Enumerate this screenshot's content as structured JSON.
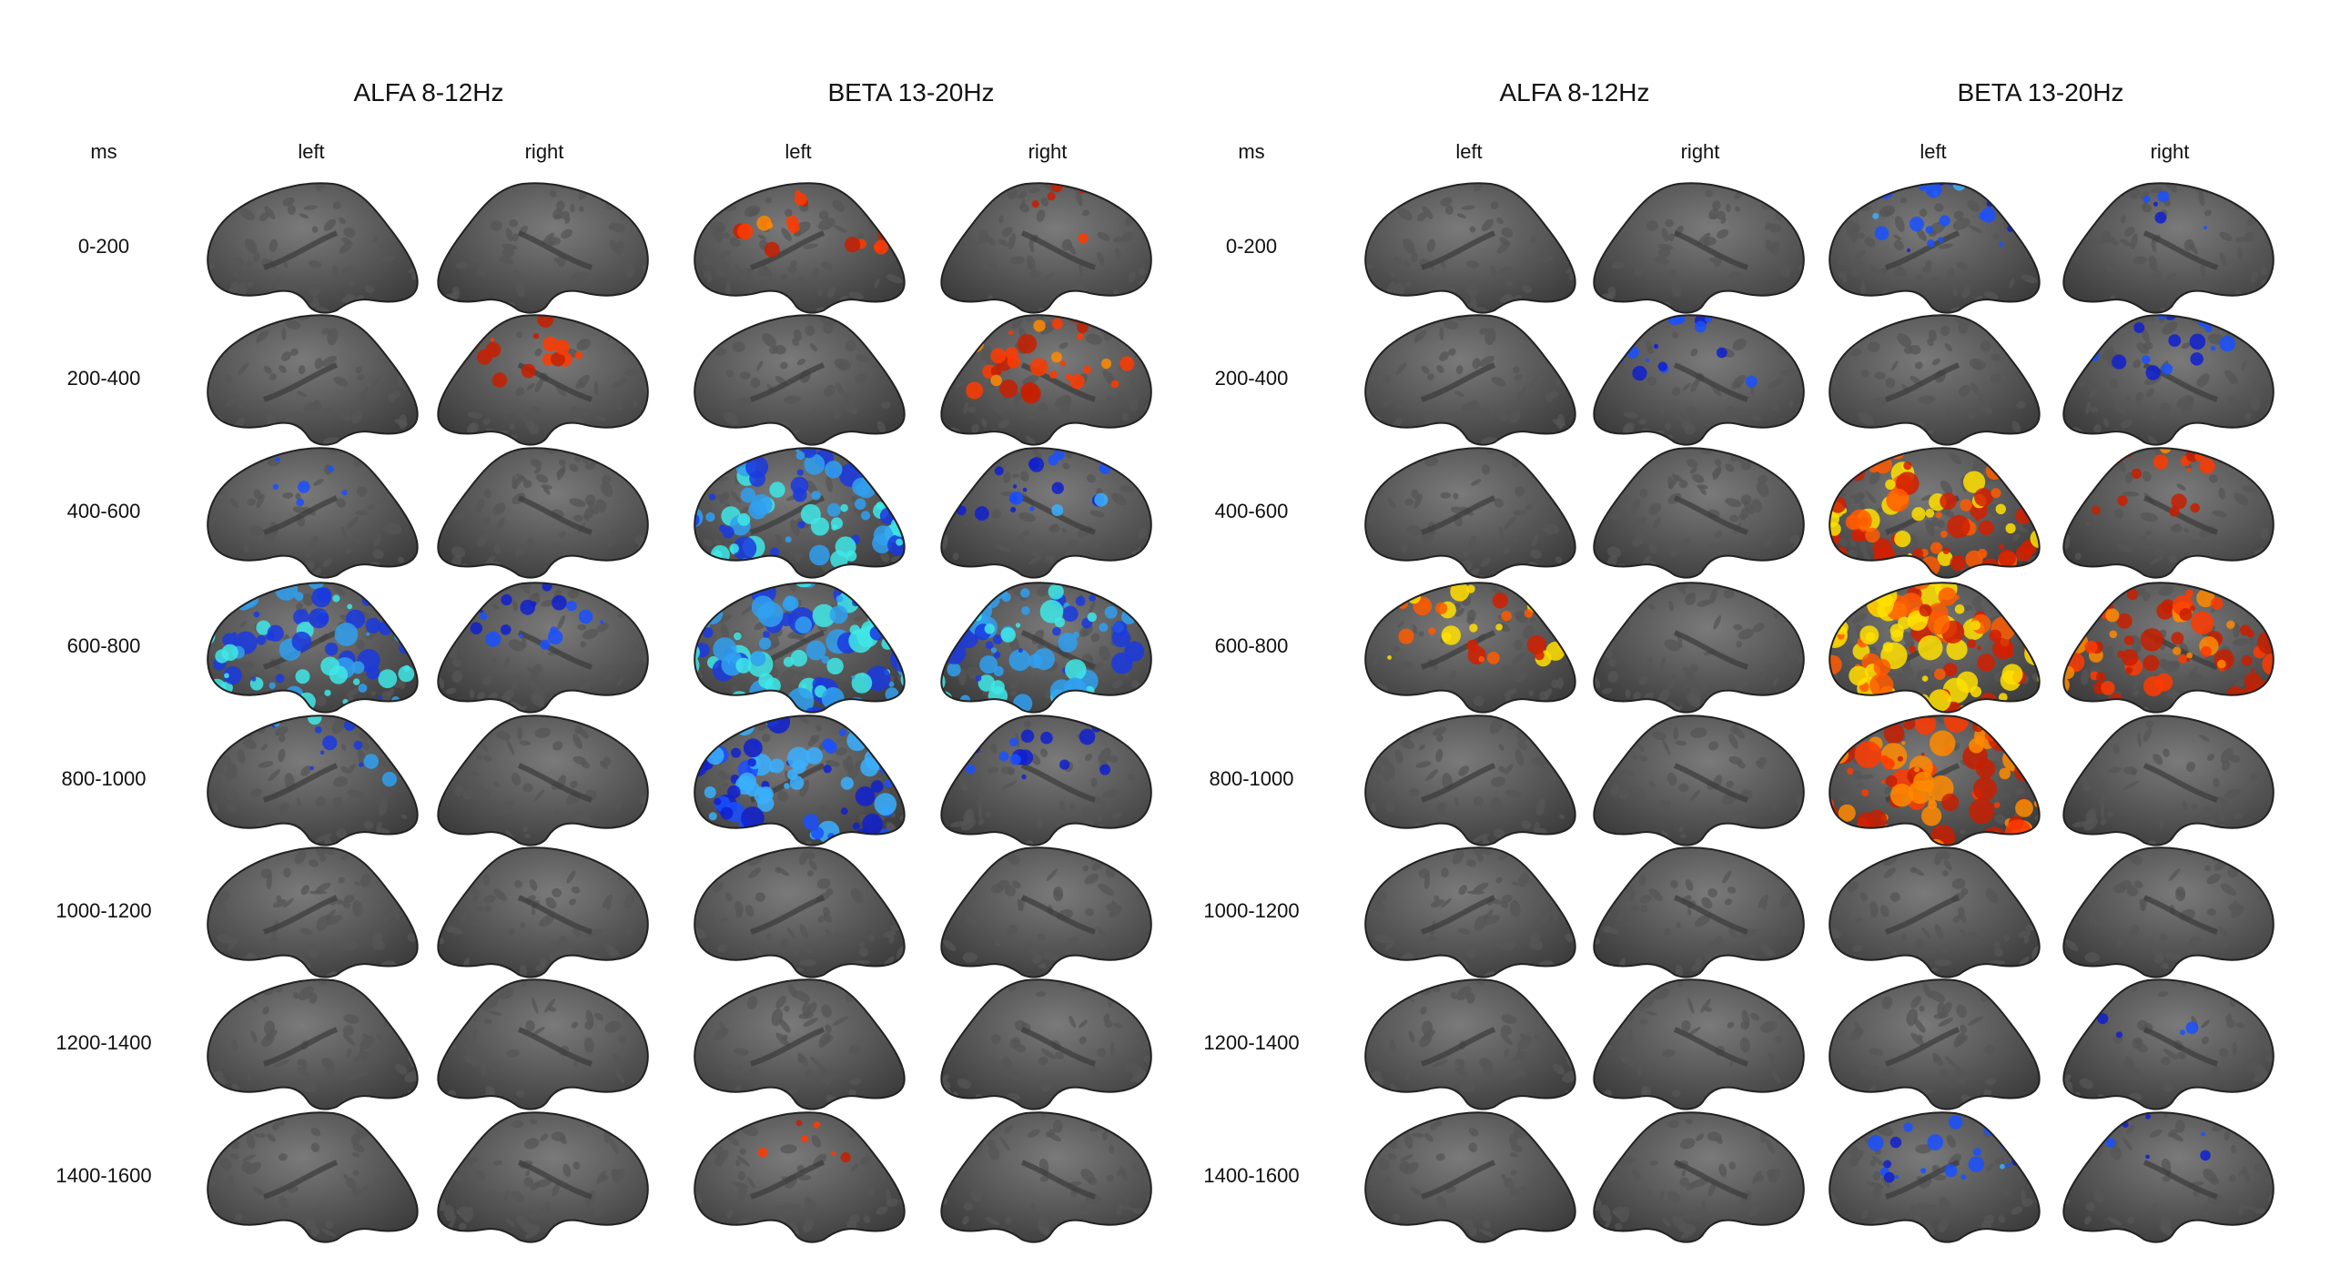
{
  "panels": [
    {
      "ms_label": "ms",
      "bands": [
        {
          "title": "ALFA 8-12Hz",
          "columns": [
            "left",
            "right"
          ]
        },
        {
          "title": "BETA 13-20Hz",
          "columns": [
            "left",
            "right"
          ]
        }
      ]
    },
    {
      "ms_label": "ms",
      "bands": [
        {
          "title": "ALFA 8-12Hz",
          "columns": [
            "left",
            "right"
          ]
        },
        {
          "title": "BETA 13-20Hz",
          "columns": [
            "left",
            "right"
          ]
        }
      ]
    }
  ],
  "time_windows": [
    "0-200",
    "200-400",
    "400-600",
    "600-800",
    "800-1000",
    "1000-1200",
    "1200-1400",
    "1400-1600"
  ],
  "color_schemes": {
    "none": [],
    "red": [
      "#c81e00",
      "#ff3a00",
      "#ff8a00"
    ],
    "yellow": [
      "#d21e00",
      "#ff5a00",
      "#ffe000"
    ],
    "blue": [
      "#1020d0",
      "#1a50ff",
      "#3ab0ff"
    ],
    "cyan": [
      "#1a3ae0",
      "#30a0f0",
      "#40e8e8"
    ]
  },
  "cortex_colors": {
    "light": "#7a7a7a",
    "dark": "#555555",
    "outline": "#222222"
  },
  "activation_maps": [
    [
      [
        {
          "scheme": "none",
          "level": 0
        },
        {
          "scheme": "none",
          "level": 0
        },
        {
          "scheme": "red",
          "level": 2
        },
        {
          "scheme": "red",
          "level": 1
        }
      ],
      [
        {
          "scheme": "none",
          "level": 0
        },
        {
          "scheme": "red",
          "level": 2
        },
        {
          "scheme": "none",
          "level": 0
        },
        {
          "scheme": "red",
          "level": 3
        }
      ],
      [
        {
          "scheme": "blue",
          "level": 1
        },
        {
          "scheme": "none",
          "level": 0
        },
        {
          "scheme": "cyan",
          "level": 4
        },
        {
          "scheme": "blue",
          "level": 2
        }
      ],
      [
        {
          "scheme": "cyan",
          "level": 4
        },
        {
          "scheme": "blue",
          "level": 2
        },
        {
          "scheme": "cyan",
          "level": 5
        },
        {
          "scheme": "cyan",
          "level": 4
        }
      ],
      [
        {
          "scheme": "cyan",
          "level": 2
        },
        {
          "scheme": "none",
          "level": 0
        },
        {
          "scheme": "blue",
          "level": 4
        },
        {
          "scheme": "blue",
          "level": 2
        }
      ],
      [
        {
          "scheme": "none",
          "level": 0
        },
        {
          "scheme": "none",
          "level": 0
        },
        {
          "scheme": "none",
          "level": 0
        },
        {
          "scheme": "none",
          "level": 0
        }
      ],
      [
        {
          "scheme": "none",
          "level": 0
        },
        {
          "scheme": "none",
          "level": 0
        },
        {
          "scheme": "none",
          "level": 0
        },
        {
          "scheme": "none",
          "level": 0
        }
      ],
      [
        {
          "scheme": "none",
          "level": 0
        },
        {
          "scheme": "none",
          "level": 0
        },
        {
          "scheme": "red",
          "level": 1
        },
        {
          "scheme": "none",
          "level": 0
        }
      ]
    ],
    [
      [
        {
          "scheme": "none",
          "level": 0
        },
        {
          "scheme": "none",
          "level": 0
        },
        {
          "scheme": "blue",
          "level": 2
        },
        {
          "scheme": "blue",
          "level": 1
        }
      ],
      [
        {
          "scheme": "none",
          "level": 0
        },
        {
          "scheme": "blue",
          "level": 2
        },
        {
          "scheme": "none",
          "level": 0
        },
        {
          "scheme": "blue",
          "level": 2
        }
      ],
      [
        {
          "scheme": "none",
          "level": 0
        },
        {
          "scheme": "none",
          "level": 0
        },
        {
          "scheme": "yellow",
          "level": 4
        },
        {
          "scheme": "red",
          "level": 2
        }
      ],
      [
        {
          "scheme": "yellow",
          "level": 3
        },
        {
          "scheme": "none",
          "level": 0
        },
        {
          "scheme": "yellow",
          "level": 5
        },
        {
          "scheme": "red",
          "level": 4
        }
      ],
      [
        {
          "scheme": "none",
          "level": 0
        },
        {
          "scheme": "none",
          "level": 0
        },
        {
          "scheme": "red",
          "level": 5
        },
        {
          "scheme": "none",
          "level": 0
        }
      ],
      [
        {
          "scheme": "none",
          "level": 0
        },
        {
          "scheme": "none",
          "level": 0
        },
        {
          "scheme": "none",
          "level": 0
        },
        {
          "scheme": "none",
          "level": 0
        }
      ],
      [
        {
          "scheme": "none",
          "level": 0
        },
        {
          "scheme": "none",
          "level": 0
        },
        {
          "scheme": "none",
          "level": 0
        },
        {
          "scheme": "blue",
          "level": 1
        }
      ],
      [
        {
          "scheme": "none",
          "level": 0
        },
        {
          "scheme": "none",
          "level": 0
        },
        {
          "scheme": "blue",
          "level": 2
        },
        {
          "scheme": "blue",
          "level": 1
        }
      ]
    ]
  ]
}
